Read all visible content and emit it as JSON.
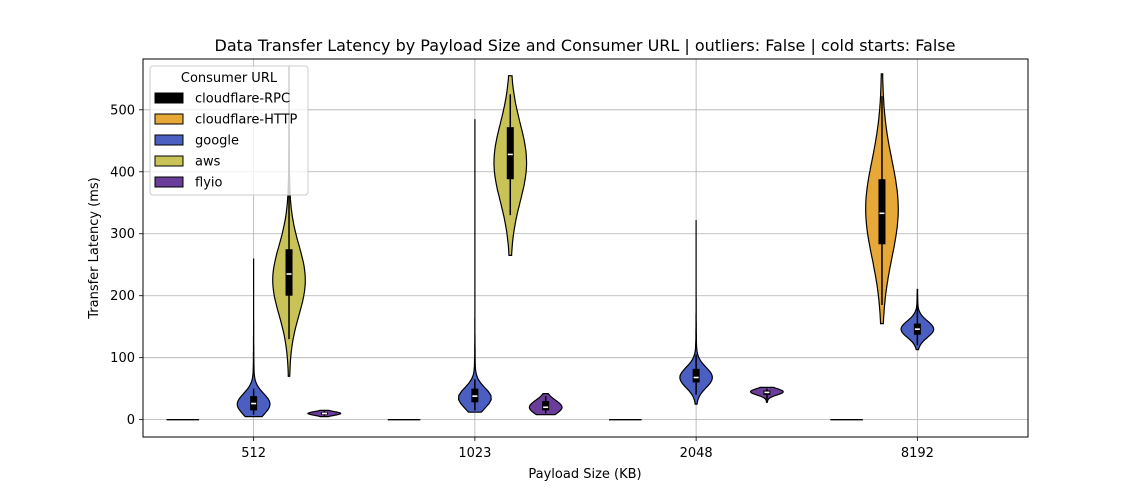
{
  "chart_data": {
    "type": "violin",
    "title": "Data Transfer Latency by Payload Size and Consumer URL | outliers: False | cold starts: False",
    "xlabel": "Payload Size (KB)",
    "ylabel": "Transfer Latency (ms)",
    "categories": [
      "512",
      "1023",
      "2048",
      "8192"
    ],
    "ylim": [
      -28,
      582
    ],
    "yticks": [
      0,
      100,
      200,
      300,
      400,
      500
    ],
    "grid": true,
    "legend": {
      "title": "Consumer URL",
      "placement": "top-left"
    },
    "series": [
      {
        "name": "cloudflare-RPC",
        "color": "#000000",
        "violins": [
          {
            "category": "512",
            "min": 0,
            "max": 0,
            "q1": 0,
            "median": 0,
            "q3": 0,
            "whisker_low": 0,
            "whisker_high": 0,
            "peak": 0
          },
          {
            "category": "1023",
            "min": 0,
            "max": 0,
            "q1": 0,
            "median": 0,
            "q3": 0,
            "whisker_low": 0,
            "whisker_high": 0,
            "peak": 0
          },
          {
            "category": "2048",
            "min": 0,
            "max": 0,
            "q1": 0,
            "median": 0,
            "q3": 0,
            "whisker_low": 0,
            "whisker_high": 0,
            "peak": 0
          },
          {
            "category": "8192",
            "min": 0,
            "max": 0,
            "q1": 0,
            "median": 0,
            "q3": 0,
            "whisker_low": 0,
            "whisker_high": 0,
            "peak": 0
          }
        ]
      },
      {
        "name": "cloudflare-HTTP",
        "color": "#e8a838",
        "violins": [
          {
            "category": "8192",
            "min": 155,
            "max": 558,
            "q1": 283,
            "median": 333,
            "q3": 388,
            "whisker_low": 185,
            "whisker_high": 522,
            "peak": 340
          }
        ]
      },
      {
        "name": "google",
        "color": "#4a5fc1",
        "violins": [
          {
            "category": "512",
            "min": 5,
            "max": 260,
            "q1": 15,
            "median": 26,
            "q3": 38,
            "whisker_low": 8,
            "whisker_high": 50,
            "peak": 25
          },
          {
            "category": "1023",
            "min": 12,
            "max": 485,
            "q1": 28,
            "median": 38,
            "q3": 50,
            "whisker_low": 15,
            "whisker_high": 65,
            "peak": 35
          },
          {
            "category": "2048",
            "min": 25,
            "max": 322,
            "q1": 60,
            "median": 68,
            "q3": 82,
            "whisker_low": 40,
            "whisker_high": 105,
            "peak": 68
          },
          {
            "category": "8192",
            "min": 113,
            "max": 210,
            "q1": 137,
            "median": 146,
            "q3": 155,
            "whisker_low": 120,
            "whisker_high": 200,
            "peak": 146
          }
        ]
      },
      {
        "name": "aws",
        "color": "#c9c357",
        "violins": [
          {
            "category": "512",
            "min": 70,
            "max": 570,
            "q1": 200,
            "median": 235,
            "q3": 275,
            "whisker_low": 130,
            "whisker_high": 405,
            "peak": 225
          },
          {
            "category": "1023",
            "min": 265,
            "max": 555,
            "q1": 388,
            "median": 428,
            "q3": 472,
            "whisker_low": 330,
            "whisker_high": 525,
            "peak": 415
          }
        ]
      },
      {
        "name": "flyio",
        "color": "#6a3d9a",
        "violins": [
          {
            "category": "512",
            "min": 5,
            "max": 15,
            "q1": 8,
            "median": 10,
            "q3": 12,
            "whisker_low": 6,
            "whisker_high": 14,
            "peak": 10
          },
          {
            "category": "1023",
            "min": 8,
            "max": 42,
            "q1": 15,
            "median": 20,
            "q3": 30,
            "whisker_low": 10,
            "whisker_high": 38,
            "peak": 20
          },
          {
            "category": "2048",
            "min": 28,
            "max": 52,
            "q1": 40,
            "median": 44,
            "q3": 47,
            "whisker_low": 32,
            "whisker_high": 50,
            "peak": 45
          }
        ]
      }
    ]
  }
}
